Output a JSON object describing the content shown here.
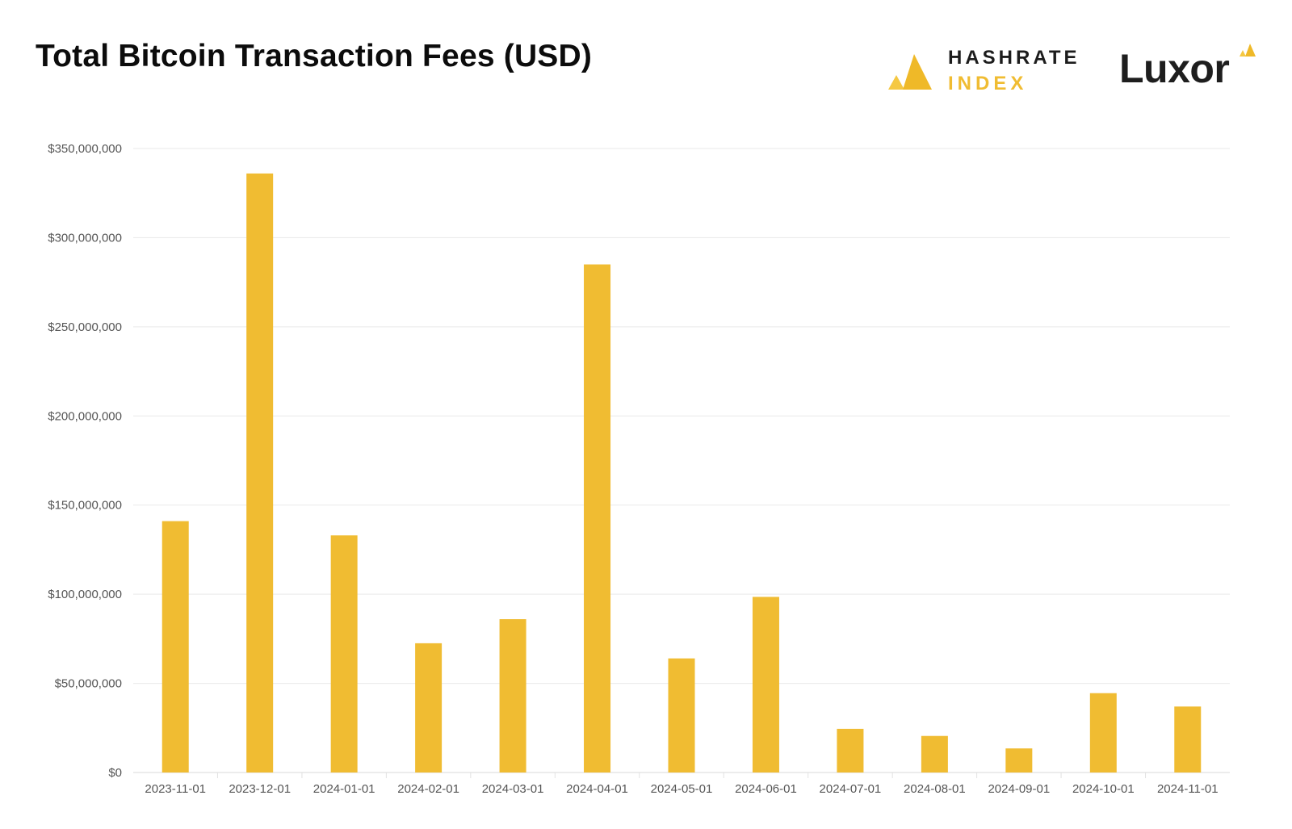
{
  "header": {
    "title": "Total Bitcoin Transaction Fees (USD)"
  },
  "logos": {
    "hashrate_top": "HASHRATE",
    "hashrate_bottom": "INDEX",
    "luxor": "Luxor"
  },
  "colors": {
    "bar": "#f0bc32",
    "grid": "#e9e9e9",
    "tick_text": "#555555",
    "title": "#0c0c0c"
  },
  "chart_data": {
    "type": "bar",
    "title": "Total Bitcoin Transaction Fees (USD)",
    "xlabel": "",
    "ylabel": "",
    "categories": [
      "2023-11-01",
      "2023-12-01",
      "2024-01-01",
      "2024-02-01",
      "2024-03-01",
      "2024-04-01",
      "2024-05-01",
      "2024-06-01",
      "2024-07-01",
      "2024-08-01",
      "2024-09-01",
      "2024-10-01",
      "2024-11-01"
    ],
    "values": [
      141000000,
      336000000,
      133000000,
      72500000,
      86000000,
      285000000,
      64000000,
      98500000,
      24500000,
      20500000,
      13500000,
      44500000,
      37000000
    ],
    "ylim": [
      0,
      350000000
    ],
    "yticks": [
      0,
      50000000,
      100000000,
      150000000,
      200000000,
      250000000,
      300000000,
      350000000
    ],
    "ytick_labels": [
      "$0",
      "$50,000,000",
      "$100,000,000",
      "$150,000,000",
      "$200,000,000",
      "$250,000,000",
      "$300,000,000",
      "$350,000,000"
    ],
    "grid": true,
    "legend": "none"
  }
}
